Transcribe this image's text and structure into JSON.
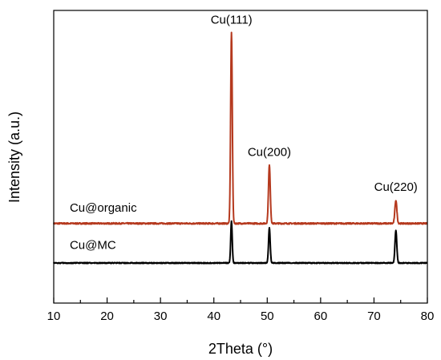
{
  "chart_data": {
    "type": "line",
    "title": "",
    "xlabel": "2Theta (°)",
    "ylabel": "Intensity (a.u.)",
    "xlim": [
      10,
      80
    ],
    "xticks": [
      10,
      20,
      30,
      40,
      50,
      60,
      70,
      80
    ],
    "y_ticks_shown": false,
    "grid": false,
    "legend": "none",
    "series": [
      {
        "name": "Cu@organic",
        "color": "#b5391e",
        "baseline": 0.17,
        "noise": 0.006,
        "peaks": [
          {
            "x": 43.3,
            "height": 0.82,
            "width": 0.22
          },
          {
            "x": 50.4,
            "height": 0.25,
            "width": 0.24
          },
          {
            "x": 74.1,
            "height": 0.1,
            "width": 0.26
          }
        ]
      },
      {
        "name": "Cu@MC",
        "color": "#000000",
        "baseline": 0.0,
        "noise": 0.004,
        "peaks": [
          {
            "x": 43.3,
            "height": 0.18,
            "width": 0.2
          },
          {
            "x": 50.4,
            "height": 0.15,
            "width": 0.22
          },
          {
            "x": 74.1,
            "height": 0.14,
            "width": 0.24
          }
        ]
      }
    ],
    "peak_labels": [
      {
        "text": "Cu(111)",
        "x": 43.3,
        "y": 1.03
      },
      {
        "text": "Cu(200)",
        "x": 50.4,
        "y": 0.46
      },
      {
        "text": "Cu(220)",
        "x": 74.1,
        "y": 0.31
      }
    ],
    "series_labels": [
      {
        "text": "Cu@organic",
        "x": 13.0,
        "y": 0.22
      },
      {
        "text": "Cu@MC",
        "x": 13.0,
        "y": 0.06
      }
    ]
  }
}
